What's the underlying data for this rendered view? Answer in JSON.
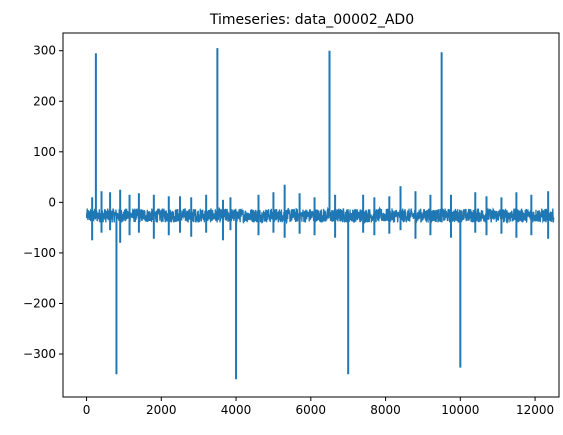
{
  "chart_data": {
    "type": "line",
    "title": "Timeseries: data_00002_AD0",
    "xlabel": "",
    "ylabel": "",
    "xlim": [
      -630,
      12640
    ],
    "ylim": [
      -385,
      335
    ],
    "xticks": [
      0,
      2000,
      4000,
      6000,
      8000,
      10000,
      12000
    ],
    "xtick_labels": [
      "0",
      "2000",
      "4000",
      "6000",
      "8000",
      "10000",
      "12000"
    ],
    "yticks": [
      300,
      200,
      100,
      0,
      -100,
      -200,
      -300
    ],
    "ytick_labels": [
      "300",
      "200",
      "100",
      "0",
      "−100",
      "−200",
      "−300"
    ],
    "grid": false,
    "series": [
      {
        "color": "#1f77b4",
        "baseline": -25,
        "noise_band": [
          -40,
          -12
        ],
        "x_range": [
          0,
          12500
        ],
        "spikes": [
          {
            "x": 250,
            "y": 295
          },
          {
            "x": 800,
            "y": -340
          },
          {
            "x": 3500,
            "y": 305
          },
          {
            "x": 4000,
            "y": -350
          },
          {
            "x": 6500,
            "y": 300
          },
          {
            "x": 7000,
            "y": -340
          },
          {
            "x": 9500,
            "y": 297
          },
          {
            "x": 10000,
            "y": -327
          }
        ],
        "bursts": [
          {
            "x": 150,
            "hi": 10,
            "lo": -75
          },
          {
            "x": 400,
            "hi": 22,
            "lo": -60
          },
          {
            "x": 630,
            "hi": 20,
            "lo": -55
          },
          {
            "x": 900,
            "hi": 25,
            "lo": -80
          },
          {
            "x": 1150,
            "hi": 15,
            "lo": -65
          },
          {
            "x": 1400,
            "hi": 18,
            "lo": -60
          },
          {
            "x": 1800,
            "hi": 15,
            "lo": -72
          },
          {
            "x": 2200,
            "hi": 12,
            "lo": -65
          },
          {
            "x": 2500,
            "hi": 12,
            "lo": -60
          },
          {
            "x": 2800,
            "hi": 10,
            "lo": -68
          },
          {
            "x": 3200,
            "hi": 15,
            "lo": -60
          },
          {
            "x": 3650,
            "hi": 5,
            "lo": -75
          },
          {
            "x": 3850,
            "hi": 10,
            "lo": -55
          },
          {
            "x": 4600,
            "hi": 15,
            "lo": -65
          },
          {
            "x": 5000,
            "hi": 20,
            "lo": -60
          },
          {
            "x": 5300,
            "hi": 35,
            "lo": -70
          },
          {
            "x": 5700,
            "hi": 18,
            "lo": -62
          },
          {
            "x": 6100,
            "hi": 10,
            "lo": -65
          },
          {
            "x": 6650,
            "hi": 15,
            "lo": -70
          },
          {
            "x": 7400,
            "hi": 15,
            "lo": -60
          },
          {
            "x": 7700,
            "hi": 10,
            "lo": -65
          },
          {
            "x": 8100,
            "hi": 12,
            "lo": -62
          },
          {
            "x": 8400,
            "hi": 32,
            "lo": -55
          },
          {
            "x": 8800,
            "hi": 22,
            "lo": -72
          },
          {
            "x": 9200,
            "hi": 15,
            "lo": -65
          },
          {
            "x": 9750,
            "hi": 15,
            "lo": -70
          },
          {
            "x": 10400,
            "hi": 20,
            "lo": -60
          },
          {
            "x": 10700,
            "hi": 12,
            "lo": -65
          },
          {
            "x": 11100,
            "hi": 10,
            "lo": -62
          },
          {
            "x": 11500,
            "hi": 20,
            "lo": -70
          },
          {
            "x": 11900,
            "hi": 15,
            "lo": -65
          },
          {
            "x": 12350,
            "hi": 22,
            "lo": -72
          }
        ]
      }
    ]
  }
}
